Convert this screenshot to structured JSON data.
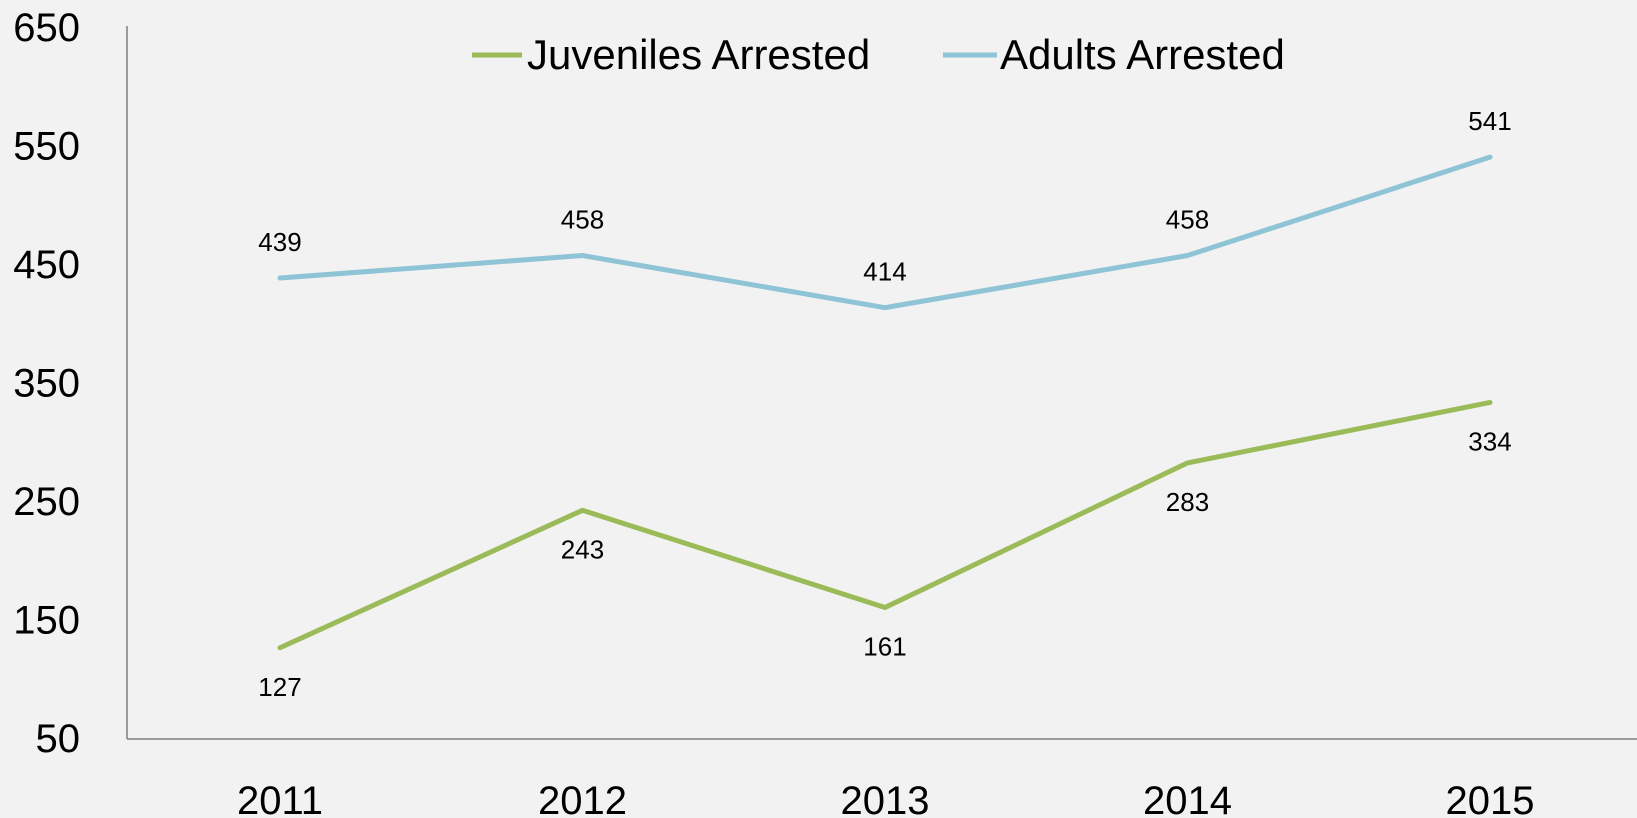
{
  "chart_data": {
    "type": "line",
    "categories": [
      "2011",
      "2012",
      "2013",
      "2014",
      "2015"
    ],
    "series": [
      {
        "name": "Juveniles Arrested",
        "values": [
          127,
          243,
          161,
          283,
          334
        ],
        "color": "#9bbb59",
        "label_position": "below"
      },
      {
        "name": "Adults Arrested",
        "values": [
          439,
          458,
          414,
          458,
          541
        ],
        "color": "#8fc3d6",
        "label_position": "above"
      }
    ],
    "ylim": [
      50,
      650
    ],
    "yticks": [
      50,
      150,
      250,
      350,
      450,
      550,
      650
    ],
    "ytick_labels": [
      "50",
      "150",
      "250",
      "350",
      "450",
      "550",
      "650"
    ],
    "grid": false,
    "legend_position": "top-center",
    "title": "",
    "xlabel": "",
    "ylabel": ""
  },
  "colors": {
    "background": "#f2f2f2",
    "axis": "#808080"
  }
}
